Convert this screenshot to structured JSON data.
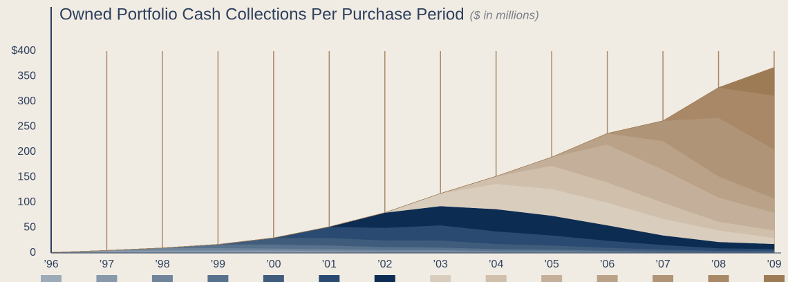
{
  "chart_data": {
    "type": "stacked_area",
    "title": "Owned Portfolio Cash Collections Per Purchase Period",
    "subtitle": "($ in millions)",
    "categories": [
      "’96",
      "’97",
      "’98",
      "’99",
      "’00",
      "’01",
      "’02",
      "’03",
      "’04",
      "’05",
      "’06",
      "’07",
      "’08",
      "’09"
    ],
    "ylim": [
      0,
      400
    ],
    "yticks": [
      0,
      50,
      100,
      150,
      200,
      250,
      300,
      350,
      {
        "value": 400,
        "label": "$400"
      }
    ],
    "series": [
      {
        "color": "#9dabb8",
        "values": [
          1,
          2,
          2,
          2,
          2,
          2,
          1,
          1,
          1,
          1,
          0.5,
          0.5,
          0.5,
          0.5
        ]
      },
      {
        "color": "#8799ab",
        "values": [
          0,
          3,
          3,
          3,
          3,
          2,
          2,
          2,
          1,
          1,
          1,
          0.5,
          0.5,
          0.5
        ]
      },
      {
        "color": "#70859b",
        "values": [
          0,
          0,
          5,
          5,
          4,
          4,
          3,
          3,
          2,
          2,
          1,
          1,
          0.5,
          0.5
        ]
      },
      {
        "color": "#58728d",
        "values": [
          0,
          0,
          0,
          7,
          8,
          7,
          6,
          5,
          4,
          3,
          2,
          1,
          1,
          1
        ]
      },
      {
        "color": "#405c7c",
        "values": [
          0,
          0,
          0,
          0,
          13,
          15,
          13,
          14,
          10,
          8,
          6,
          4,
          2,
          1.5
        ]
      },
      {
        "color": "#2a4a71",
        "values": [
          0,
          0,
          0,
          0,
          0,
          22,
          25,
          30,
          25,
          20,
          14,
          9,
          5,
          4
        ]
      },
      {
        "color": "#0c2c52",
        "values": [
          0,
          0,
          0,
          0,
          0,
          0,
          30,
          38,
          44,
          39,
          30.5,
          19,
          12.5,
          10
        ]
      },
      {
        "color": "#d9cdbd",
        "values": [
          0,
          0,
          0,
          0,
          0,
          0,
          0,
          25,
          50,
          53,
          45,
          33,
          23,
          12
        ]
      },
      {
        "color": "#cfbfab",
        "values": [
          0,
          0,
          0,
          0,
          0,
          0,
          0,
          0,
          15,
          46,
          40,
          32,
          17,
          15
        ]
      },
      {
        "color": "#c4b09a",
        "values": [
          0,
          0,
          0,
          0,
          0,
          0,
          0,
          0,
          0,
          17,
          75,
          65,
          48,
          35
        ]
      },
      {
        "color": "#baa288",
        "values": [
          0,
          0,
          0,
          0,
          0,
          0,
          0,
          0,
          0,
          0,
          22,
          57,
          42,
          28
        ]
      },
      {
        "color": "#b09477",
        "values": [
          0,
          0,
          0,
          0,
          0,
          0,
          0,
          0,
          0,
          0,
          0,
          40,
          116,
          97
        ]
      },
      {
        "color": "#a88866",
        "values": [
          0,
          0,
          0,
          0,
          0,
          0,
          0,
          0,
          0,
          0,
          0,
          0,
          60,
          107
        ]
      },
      {
        "color": "#9c7b55",
        "values": [
          0,
          0,
          0,
          0,
          0,
          0,
          0,
          0,
          0,
          0,
          0,
          0,
          0,
          56
        ]
      }
    ]
  }
}
